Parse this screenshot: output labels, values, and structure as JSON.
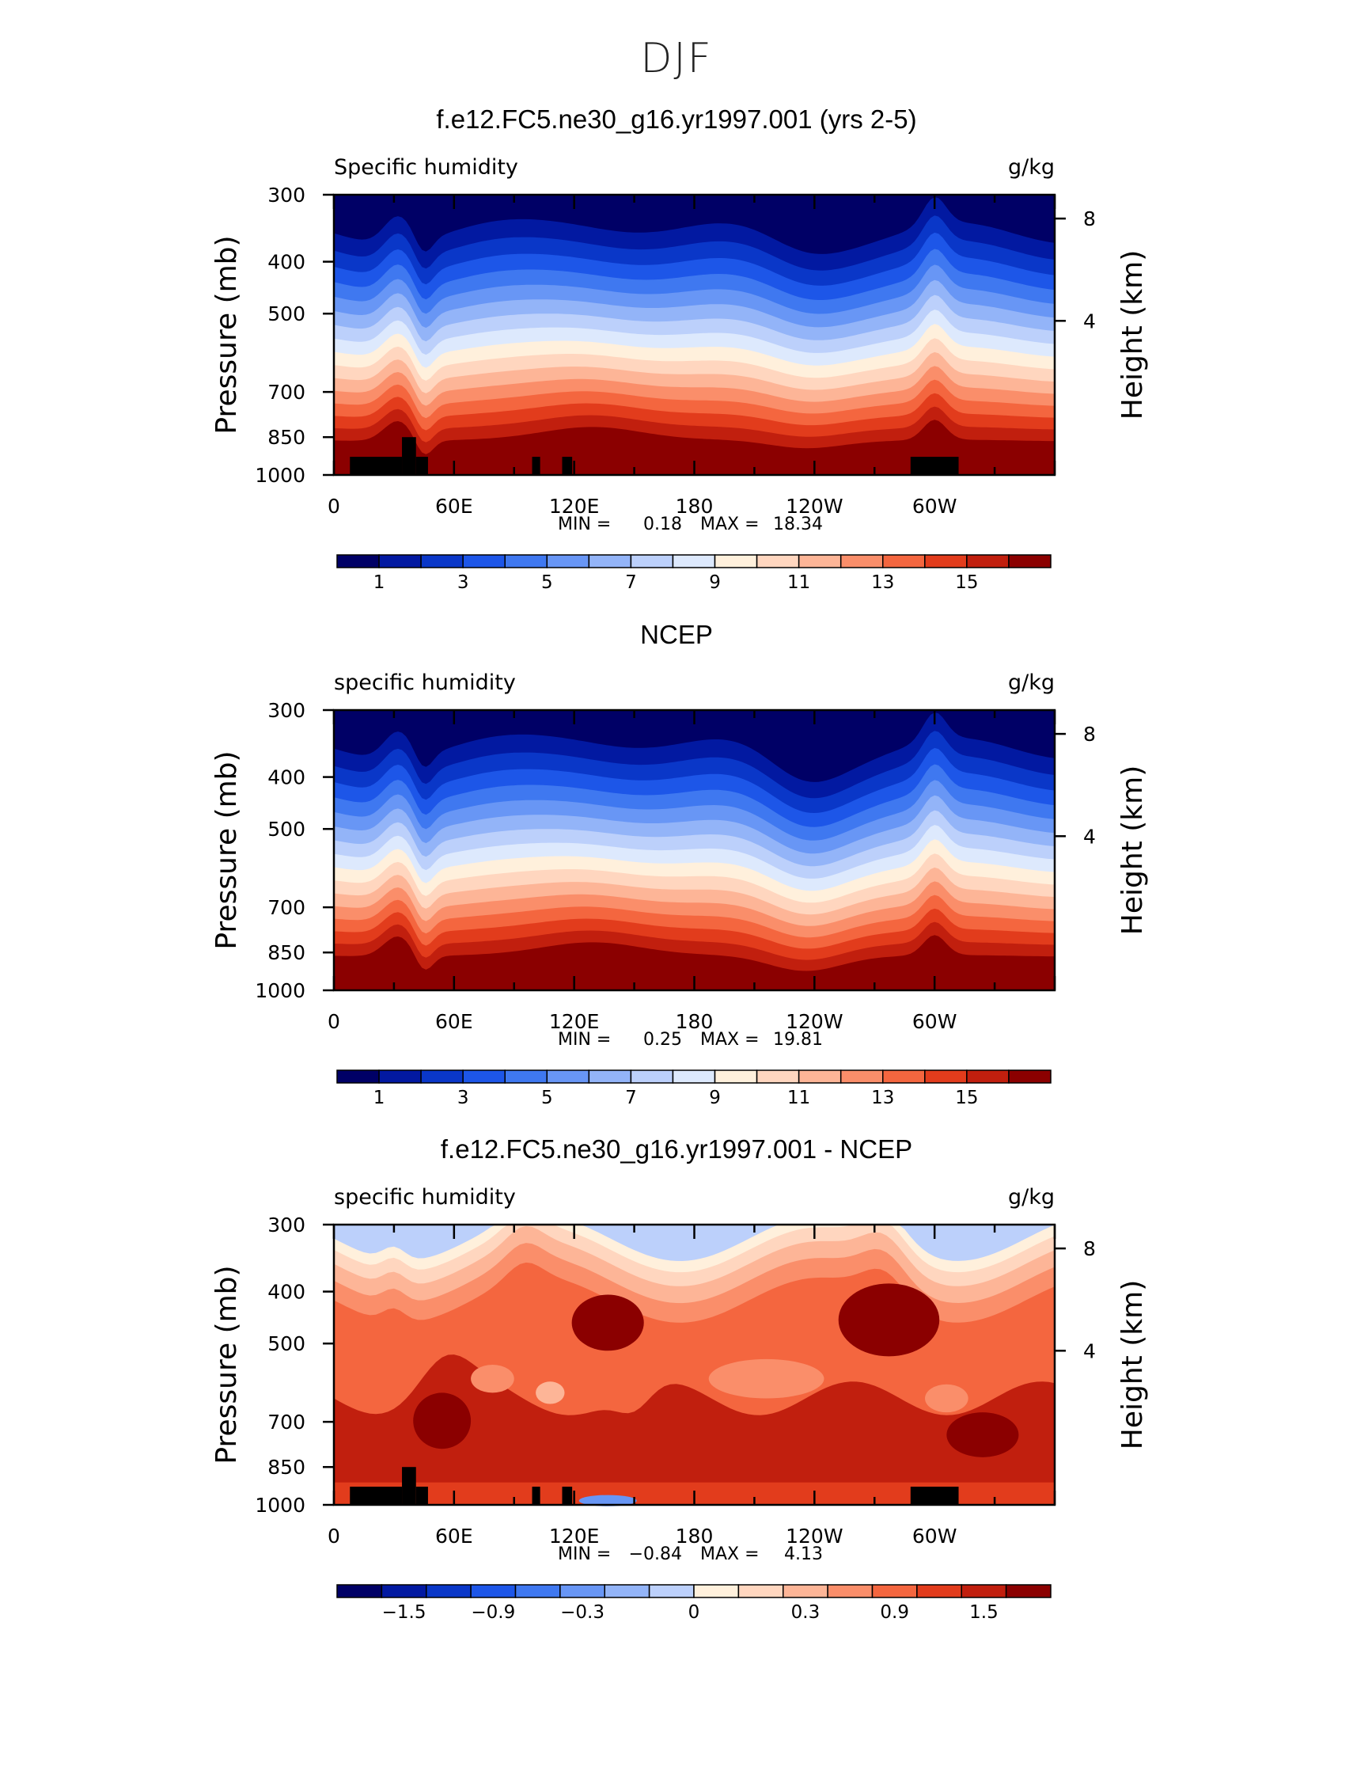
{
  "figure_title": "DJF",
  "panel_titles": [
    "f.e12.FC5.ne30_g16.yr1997.001 (yrs 2-5)",
    "NCEP",
    "f.e12.FC5.ne30_g16.yr1997.001 - NCEP"
  ],
  "colors": {
    "sequential": [
      "#000066",
      "#0219a1",
      "#0a37c8",
      "#1d56e8",
      "#3f78f0",
      "#6896f5",
      "#93b4f8",
      "#bcd0fb",
      "#dde9fd",
      "#fff0dc",
      "#ffd6bf",
      "#fdb597",
      "#fa8e6a",
      "#f4663f",
      "#e23c1c",
      "#c11f0e",
      "#8b0000"
    ],
    "diverging": [
      "#000066",
      "#0219a1",
      "#0a37c8",
      "#1d56e8",
      "#3f78f0",
      "#6896f5",
      "#93b4f8",
      "#bcd0fb",
      "#fff0dc",
      "#ffd6bf",
      "#fdb597",
      "#fa8e6a",
      "#f4663f",
      "#e23c1c",
      "#c11f0e",
      "#8b0000"
    ],
    "terrain": "#000000"
  },
  "chart_data": [
    {
      "type": "heatmap",
      "title": "f.e12.FC5.ne30_g16.yr1997.001 (yrs 2-5)",
      "left_label": "Specific humidity",
      "right_label": "g/kg",
      "ylabel": "Pressure (mb)",
      "ylabel_right": "Height (km)",
      "yticks": [
        300,
        400,
        500,
        700,
        850,
        1000
      ],
      "yticks_right": [
        8,
        4
      ],
      "xticks": [
        "0",
        "60E",
        "120E",
        "180",
        "120W",
        "60W"
      ],
      "min_label": "MIN =",
      "min_value": "0.18",
      "max_label": "MAX =",
      "max_value": "18.34",
      "colorbar_labels": [
        "1",
        "3",
        "5",
        "7",
        "9",
        "11",
        "13",
        "15"
      ],
      "shading": "contour-filled specific humidity, decreasing with height"
    },
    {
      "type": "heatmap",
      "title": "NCEP",
      "left_label": "specific humidity",
      "right_label": "g/kg",
      "ylabel": "Pressure (mb)",
      "ylabel_right": "Height (km)",
      "yticks": [
        300,
        400,
        500,
        700,
        850,
        1000
      ],
      "yticks_right": [
        8,
        4
      ],
      "xticks": [
        "0",
        "60E",
        "120E",
        "180",
        "120W",
        "60W"
      ],
      "min_label": "MIN =",
      "min_value": "0.25",
      "max_label": "MAX =",
      "max_value": "19.81",
      "colorbar_labels": [
        "1",
        "3",
        "5",
        "7",
        "9",
        "11",
        "13",
        "15"
      ]
    },
    {
      "type": "heatmap",
      "title": "f.e12.FC5.ne30_g16.yr1997.001 - NCEP",
      "left_label": "specific humidity",
      "right_label": "g/kg",
      "ylabel": "Pressure (mb)",
      "ylabel_right": "Height (km)",
      "yticks": [
        300,
        400,
        500,
        700,
        850,
        1000
      ],
      "yticks_right": [
        8,
        4
      ],
      "xticks": [
        "0",
        "60E",
        "120E",
        "180",
        "120W",
        "60W"
      ],
      "min_label": "MIN =",
      "min_value": "−0.84",
      "max_label": "MAX =",
      "max_value": "4.13",
      "colorbar_labels": [
        "−1.5",
        "−0.9",
        "−0.3",
        "0",
        "0.3",
        "0.9",
        "1.5"
      ]
    }
  ]
}
